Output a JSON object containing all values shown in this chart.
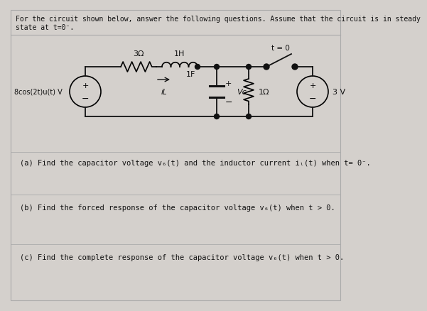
{
  "background_color": "#d4d0cc",
  "border_color": "#aaaaaa",
  "text_color": "#111111",
  "title_line1": "For the circuit shown below, answer the following questions. Assume that the circuit is in steady",
  "title_line2": "state at t=0⁻.",
  "question_a": "(a) Find the capacitor voltage v₆(t) and the inductor current iₗ(t) when t= 0⁻.",
  "question_b": "(b) Find the forced response of the capacitor voltage v₆(t) when t > 0.",
  "question_c": "(c) Find the complete response of the capacitor voltage v₆(t) when t > 0.",
  "font_size": 7.5,
  "circuit": {
    "source1_label": "8cos(2t)u(t) V",
    "r1_label": "3Ω",
    "l_label": "1H",
    "c_label": "1F",
    "vc_label": "Vc",
    "r2_label": "1Ω",
    "sw_label": "t = 0",
    "source2_label": "3 V",
    "il_label": "iL"
  }
}
